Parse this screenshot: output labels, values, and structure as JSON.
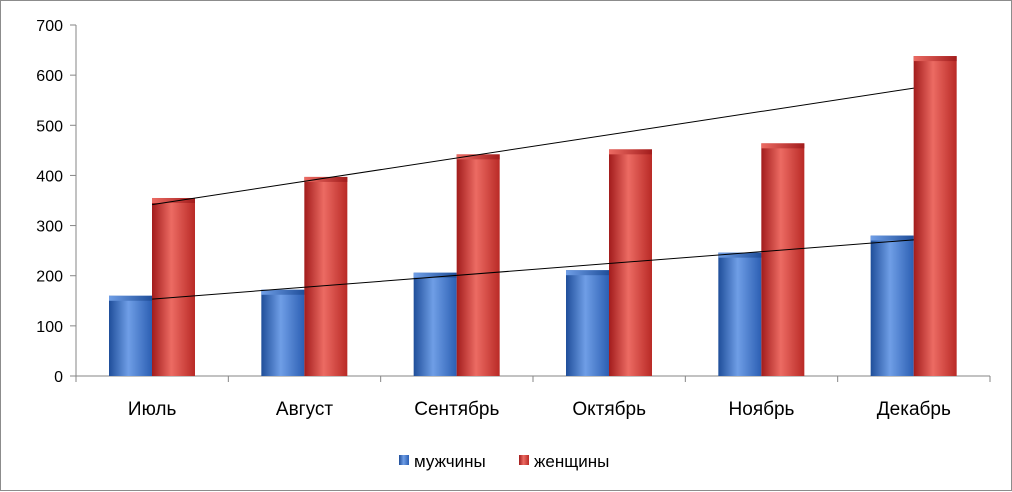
{
  "chart_data": {
    "type": "bar",
    "categories": [
      "Июль",
      "Август",
      "Сентябрь",
      "Октябрь",
      "Ноябрь",
      "Декабрь"
    ],
    "series": [
      {
        "name": "мужчины",
        "values": [
          160,
          172,
          206,
          211,
          246,
          280
        ],
        "color": "#3b6fc4"
      },
      {
        "name": "женщины",
        "values": [
          355,
          397,
          442,
          452,
          464,
          638
        ],
        "color": "#d33a36"
      }
    ],
    "trendlines": [
      {
        "series": "мужчины",
        "type": "linear"
      },
      {
        "series": "женщины",
        "type": "linear"
      }
    ],
    "ylim": [
      0,
      700
    ],
    "yticks": [
      0,
      100,
      200,
      300,
      400,
      500,
      600,
      700
    ],
    "grid": false,
    "legend_position": "bottom",
    "title": "",
    "xlabel": "",
    "ylabel": ""
  }
}
